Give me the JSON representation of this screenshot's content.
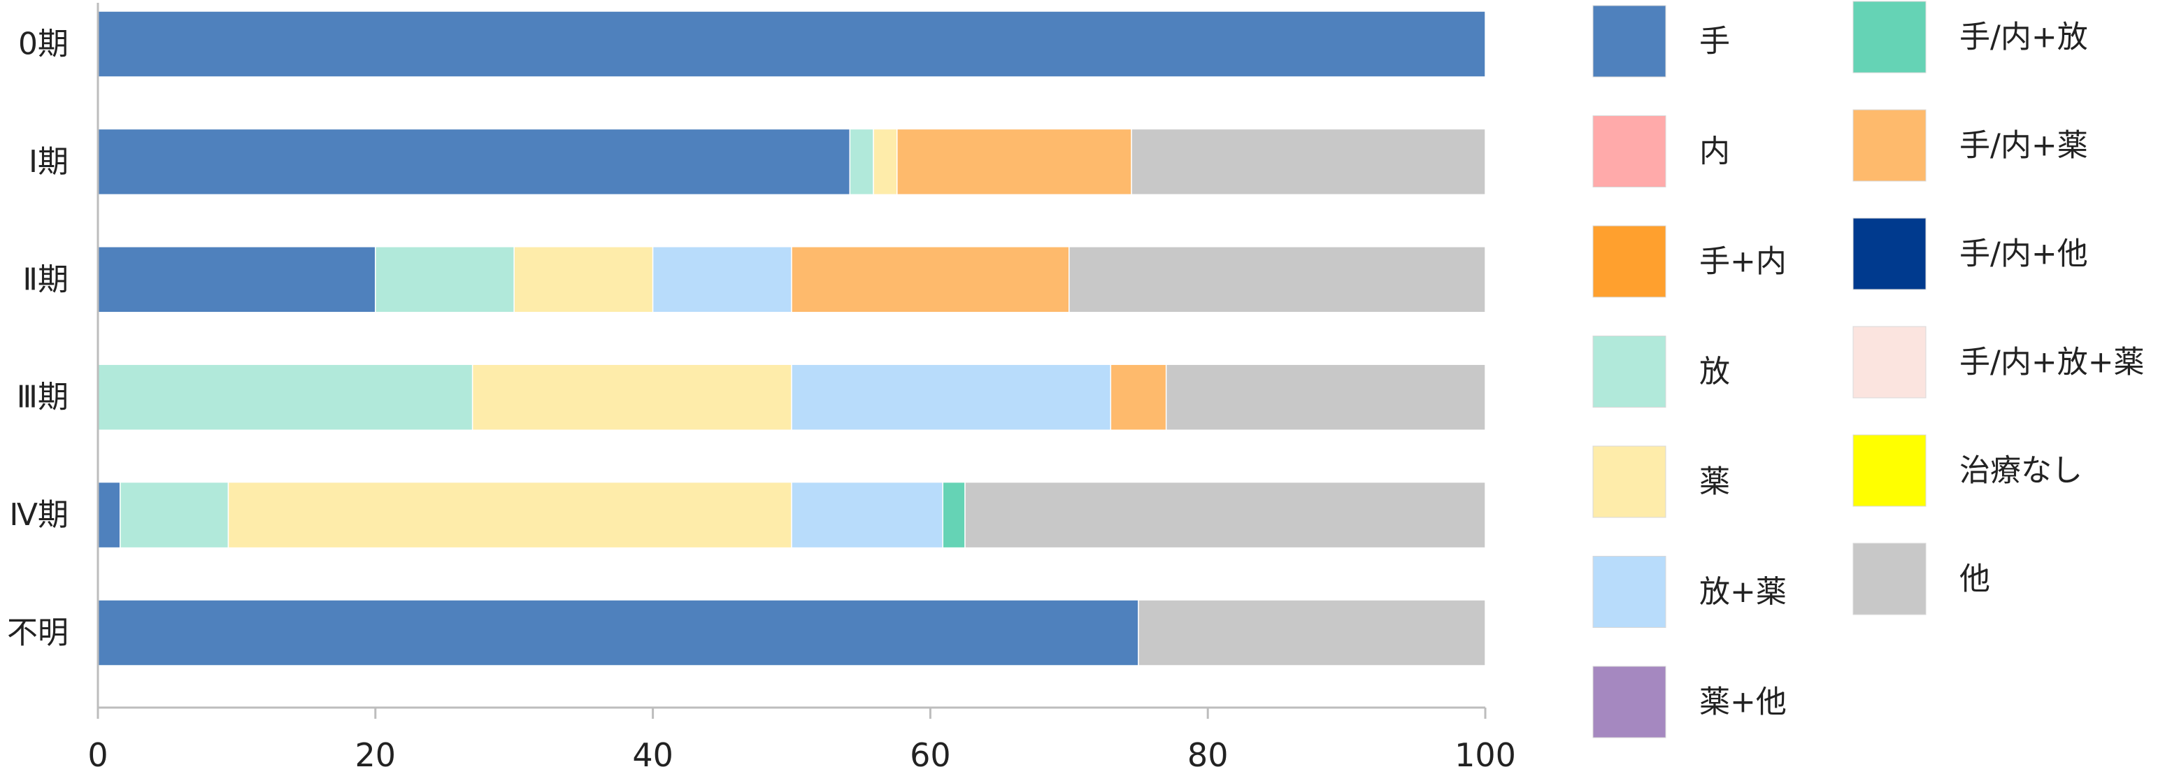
{
  "chart_data": {
    "type": "bar",
    "orientation": "horizontal",
    "stacked": true,
    "categories": [
      "0期",
      "Ⅰ期",
      "Ⅱ期",
      "Ⅲ期",
      "Ⅳ期",
      "不明"
    ],
    "xlim": [
      0,
      100
    ],
    "xticks": [
      "0",
      "20",
      "40",
      "60",
      "80",
      "100"
    ],
    "grid": false,
    "legend_position": "right",
    "series": [
      {
        "name": "手",
        "color": "#4f81bd",
        "values": [
          100,
          54.2,
          20,
          0,
          1.6,
          75
        ]
      },
      {
        "name": "内",
        "color": "#ffaaaa",
        "values": [
          0,
          0,
          0,
          0,
          0,
          0
        ]
      },
      {
        "name": "手+内",
        "color": "#ffa02e",
        "values": [
          0,
          0,
          0,
          0,
          0,
          0
        ]
      },
      {
        "name": "放",
        "color": "#b1e9da",
        "values": [
          0,
          1.7,
          10,
          27,
          7.8,
          0
        ]
      },
      {
        "name": "薬",
        "color": "#feecaa",
        "values": [
          0,
          1.7,
          10,
          23,
          40.6,
          0
        ]
      },
      {
        "name": "放+薬",
        "color": "#b8dcfb",
        "values": [
          0,
          0,
          10,
          23,
          10.9,
          0
        ]
      },
      {
        "name": "薬+他",
        "color": "#a588c0",
        "values": [
          0,
          0,
          0,
          0,
          0,
          0
        ]
      },
      {
        "name": "手/内+放",
        "color": "#65d3b5",
        "values": [
          0,
          0,
          0,
          0,
          1.6,
          0
        ]
      },
      {
        "name": "手/内+薬",
        "color": "#feba6c",
        "values": [
          0,
          16.9,
          20,
          4,
          0,
          0
        ]
      },
      {
        "name": "手/内+他",
        "color": "#003a8e",
        "values": [
          0,
          0,
          0,
          0,
          0,
          0
        ]
      },
      {
        "name": "手/内+放+薬",
        "color": "#fbe4df",
        "values": [
          0,
          0,
          0,
          0,
          0,
          0
        ]
      },
      {
        "name": "治療なし",
        "color": "#ffff00",
        "values": [
          0,
          0,
          0,
          0,
          0,
          0
        ]
      },
      {
        "name": "他",
        "color": "#c8c8c8",
        "values": [
          0,
          25.5,
          30,
          23,
          37.5,
          25
        ]
      }
    ]
  }
}
